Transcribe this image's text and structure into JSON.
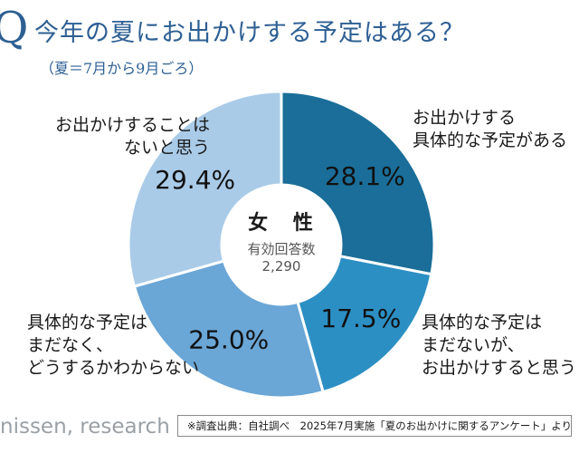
{
  "header": {
    "q_mark": "Q",
    "title": "今年の夏にお出かけする予定はある？",
    "subtitle": "（夏＝7月から9月ごろ）"
  },
  "chart_data": {
    "type": "pie",
    "variant": "donut",
    "title": "今年の夏にお出かけする予定はある？",
    "center": {
      "title": "女 性",
      "n_label": "有効回答数",
      "n_value": "2,290"
    },
    "slices": [
      {
        "label": "お出かけする具体的な予定がある",
        "label_lines": [
          "お出かけする",
          "具体的な予定がある"
        ],
        "value": 28.1,
        "display": "28.1%",
        "color": "#1a6e99"
      },
      {
        "label": "具体的な予定はまだないが、お出かけすると思う",
        "label_lines": [
          "具体的な予定は",
          "まだないが、",
          "お出かけすると思う"
        ],
        "value": 17.5,
        "display": "17.5%",
        "color": "#2c8fc4"
      },
      {
        "label": "具体的な予定はまだなく、どうするかわからない",
        "label_lines": [
          "具体的な予定は",
          "まだなく、",
          "どうするかわからない"
        ],
        "value": 25.0,
        "display": "25.0%",
        "color": "#6aa6d6"
      },
      {
        "label": "お出かけすることはないと思う",
        "label_lines": [
          "お出かけすることは",
          "ないと思う"
        ],
        "value": 29.4,
        "display": "29.4%",
        "color": "#a9cbe8"
      }
    ]
  },
  "footer": {
    "logo": "nissen, research",
    "source": "※調査出典：自社調べ　2025年7月実施「夏のお出かけに関するアンケート」より"
  }
}
